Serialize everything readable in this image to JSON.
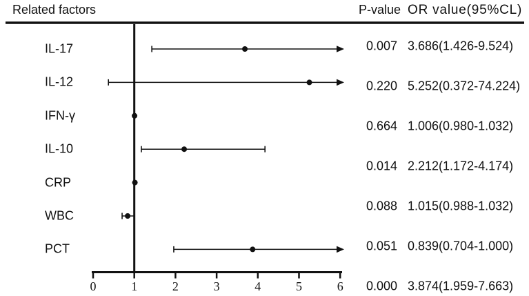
{
  "header": {
    "related_factors": "Related factors",
    "p_value": "P-value",
    "or_value": "OR value(95%CL)"
  },
  "colors": {
    "ink": "#111111",
    "background": "#ffffff"
  },
  "chart_data": {
    "type": "forest",
    "title": "",
    "x_axis": {
      "min": 0,
      "max": 6,
      "ticks": [
        0,
        1,
        2,
        3,
        4,
        5,
        6
      ],
      "reference_line": 1
    },
    "legend": "none",
    "rows": [
      {
        "factor": "IL-17",
        "p_value": "0.007",
        "or_text": "3.686(1.426-9.524)",
        "or": 3.686,
        "ci_low": 1.426,
        "ci_high": 9.524
      },
      {
        "factor": "IL-12",
        "p_value": "0.220",
        "or_text": "5.252(0.372-74.224)",
        "or": 5.252,
        "ci_low": 0.372,
        "ci_high": 74.224
      },
      {
        "factor": "IFN-γ",
        "p_value": "0.664",
        "or_text": "1.006(0.980-1.032)",
        "or": 1.006,
        "ci_low": 0.98,
        "ci_high": 1.032
      },
      {
        "factor": "IL-10",
        "p_value": "0.014",
        "or_text": "2.212(1.172-4.174)",
        "or": 2.212,
        "ci_low": 1.172,
        "ci_high": 4.174
      },
      {
        "factor": "CRP",
        "p_value": "0.088",
        "or_text": "1.015(0.988-1.032)",
        "or": 1.015,
        "ci_low": 0.988,
        "ci_high": 1.032
      },
      {
        "factor": "WBC",
        "p_value": "0.051",
        "or_text": "0.839(0.704-1.000)",
        "or": 0.839,
        "ci_low": 0.704,
        "ci_high": 1.0
      },
      {
        "factor": "PCT",
        "p_value": "0.000",
        "or_text": "3.874(1.959-7.663)",
        "or": 3.874,
        "ci_low": 1.959,
        "ci_high": 7.663
      }
    ]
  }
}
